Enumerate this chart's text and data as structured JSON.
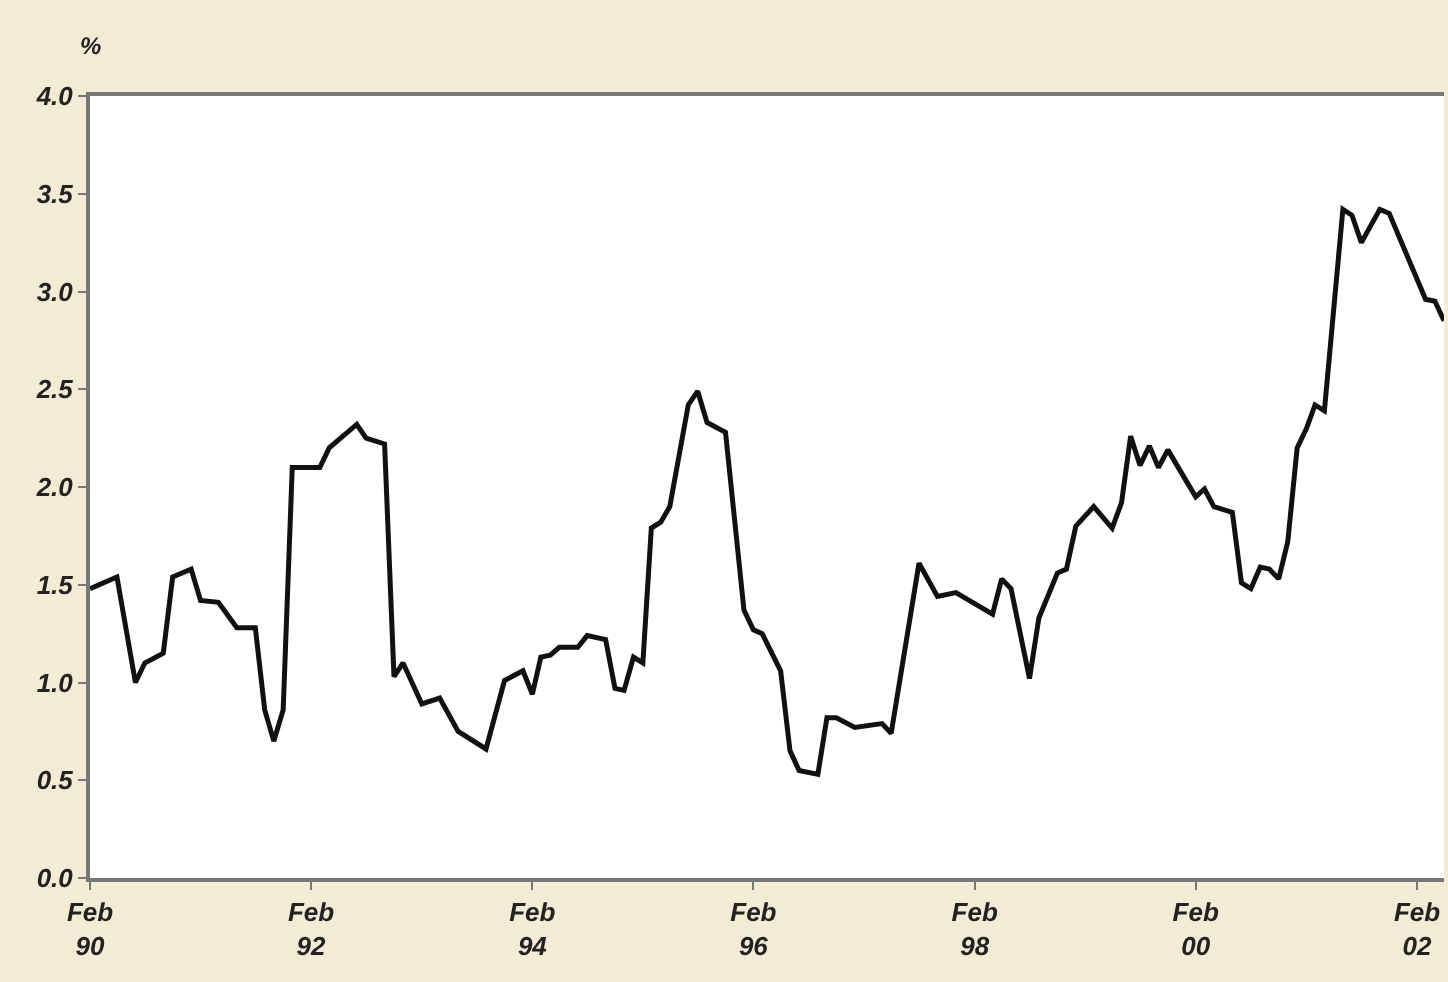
{
  "chart_data": {
    "type": "line",
    "ylabel": "%",
    "color": "#111111",
    "x": [
      "1990-02",
      "1990-05",
      "1990-07",
      "1990-08",
      "1990-10",
      "1990-11",
      "1991-01",
      "1991-02",
      "1991-04",
      "1991-06",
      "1991-08",
      "1991-09",
      "1991-10",
      "1991-11",
      "1991-12",
      "1992-03",
      "1992-04",
      "1992-07",
      "1992-08",
      "1992-10",
      "1992-11",
      "1992-12",
      "1993-02",
      "1993-04",
      "1993-06",
      "1993-09",
      "1993-11",
      "1994-01",
      "1994-02",
      "1994-03",
      "1994-04",
      "1994-05",
      "1994-07",
      "1994-08",
      "1994-10",
      "1994-11",
      "1994-12",
      "1995-01",
      "1995-02",
      "1995-03",
      "1995-04",
      "1995-05",
      "1995-07",
      "1995-08",
      "1995-09",
      "1995-11",
      "1996-01",
      "1996-02",
      "1996-03",
      "1996-05",
      "1996-06",
      "1996-07",
      "1996-09",
      "1996-10",
      "1996-11",
      "1997-01",
      "1997-04",
      "1997-05",
      "1997-08",
      "1997-10",
      "1997-12",
      "1998-04",
      "1998-05",
      "1998-06",
      "1998-08",
      "1998-09",
      "1998-11",
      "1998-12",
      "1999-01",
      "1999-03",
      "1999-05",
      "1999-06",
      "1999-07",
      "1999-08",
      "1999-09",
      "1999-10",
      "1999-11",
      "2000-01",
      "2000-02",
      "2000-03",
      "2000-04",
      "2000-06",
      "2000-07",
      "2000-08",
      "2000-09",
      "2000-10",
      "2000-11",
      "2000-12",
      "2001-01",
      "2001-02",
      "2001-03",
      "2001-04",
      "2001-06",
      "2001-07",
      "2001-08",
      "2001-10",
      "2001-11",
      "2002-03",
      "2002-04",
      "2002-05"
    ],
    "values": [
      1.48,
      1.54,
      1.0,
      1.1,
      1.15,
      1.54,
      1.58,
      1.42,
      1.41,
      1.28,
      1.28,
      0.86,
      0.7,
      0.86,
      2.1,
      2.1,
      2.2,
      2.32,
      2.25,
      2.22,
      1.03,
      1.1,
      0.89,
      0.92,
      0.75,
      0.66,
      1.01,
      1.06,
      0.94,
      1.13,
      1.14,
      1.18,
      1.18,
      1.24,
      1.22,
      0.97,
      0.96,
      1.13,
      1.1,
      1.79,
      1.82,
      1.9,
      2.42,
      2.49,
      2.33,
      2.28,
      1.37,
      1.27,
      1.25,
      1.06,
      0.65,
      0.55,
      0.53,
      0.82,
      0.82,
      0.77,
      0.79,
      0.74,
      1.61,
      1.44,
      1.46,
      1.35,
      1.53,
      1.48,
      1.02,
      1.33,
      1.56,
      1.58,
      1.8,
      1.9,
      1.79,
      1.92,
      2.26,
      2.11,
      2.21,
      2.1,
      2.19,
      2.03,
      1.95,
      1.99,
      1.9,
      1.87,
      1.51,
      1.48,
      1.59,
      1.58,
      1.53,
      1.72,
      2.2,
      2.3,
      2.42,
      2.39,
      3.42,
      3.39,
      3.25,
      3.42,
      3.4,
      2.96,
      2.95,
      2.85
    ],
    "xlim": [
      "1990-02",
      "2002-05"
    ],
    "xticks": [
      {
        "value": "1990-02",
        "label": "Feb\n90"
      },
      {
        "value": "1992-02",
        "label": "Feb\n92"
      },
      {
        "value": "1994-02",
        "label": "Feb\n94"
      },
      {
        "value": "1996-02",
        "label": "Feb\n96"
      },
      {
        "value": "1998-02",
        "label": "Feb\n98"
      },
      {
        "value": "2000-02",
        "label": "Feb\n00"
      },
      {
        "value": "2002-02",
        "label": "Feb\n02"
      }
    ],
    "ylim": [
      0,
      4
    ],
    "yticks": [
      {
        "value": 0,
        "label": "0.0"
      },
      {
        "value": 0.5,
        "label": "0.5"
      },
      {
        "value": 1,
        "label": "1.0"
      },
      {
        "value": 1.5,
        "label": "1.5"
      },
      {
        "value": 2,
        "label": "2.0"
      },
      {
        "value": 2.5,
        "label": "2.5"
      },
      {
        "value": 3,
        "label": "3.0"
      },
      {
        "value": 3.5,
        "label": "3.5"
      },
      {
        "value": 4,
        "label": "4.0"
      }
    ],
    "marker": "none",
    "line_style": "solid"
  }
}
